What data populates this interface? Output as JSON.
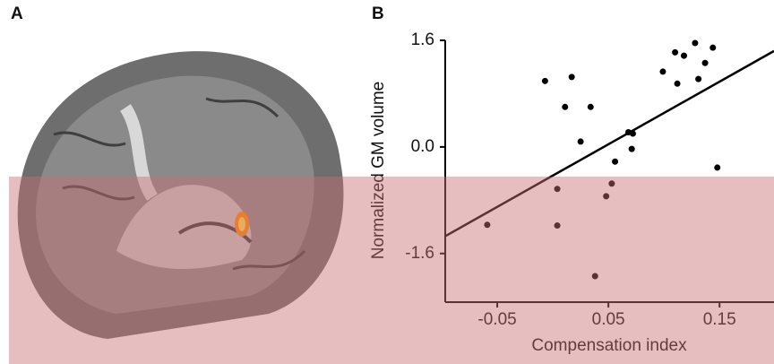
{
  "panel_a": {
    "label": "A"
  },
  "chart_data": {
    "type": "scatter",
    "panel_label": "B",
    "xlabel": "Compensation index",
    "ylabel": "Normalized GM volume",
    "x": [
      -0.059,
      -0.007,
      0.017,
      0.011,
      0.034,
      0.025,
      0.004,
      0.004,
      0.038,
      0.048,
      0.053,
      0.056,
      0.068,
      0.072,
      0.071,
      0.099,
      0.11,
      0.118,
      0.112,
      0.128,
      0.131,
      0.137,
      0.144,
      0.148
    ],
    "values": [
      -1.17,
      0.99,
      1.05,
      0.6,
      0.6,
      0.08,
      -0.63,
      -1.18,
      -1.94,
      -0.74,
      -0.55,
      -0.22,
      0.22,
      0.2,
      -0.03,
      1.13,
      1.42,
      1.37,
      0.95,
      1.56,
      1.02,
      1.26,
      1.49,
      -0.31
    ],
    "color": "#000000",
    "fit_line": {
      "x": [
        -0.0968,
        0.199
      ],
      "y": [
        -1.34,
        1.44
      ]
    },
    "xlim": [
      -0.0968,
      0.199
    ],
    "xticks": [
      -0.05,
      0.05,
      0.15
    ],
    "ylim": [
      -2.33,
      1.6
    ],
    "yticks": [
      -1.6,
      {
        "value": 0,
        "label": "0.0"
      },
      1.6
    ]
  }
}
